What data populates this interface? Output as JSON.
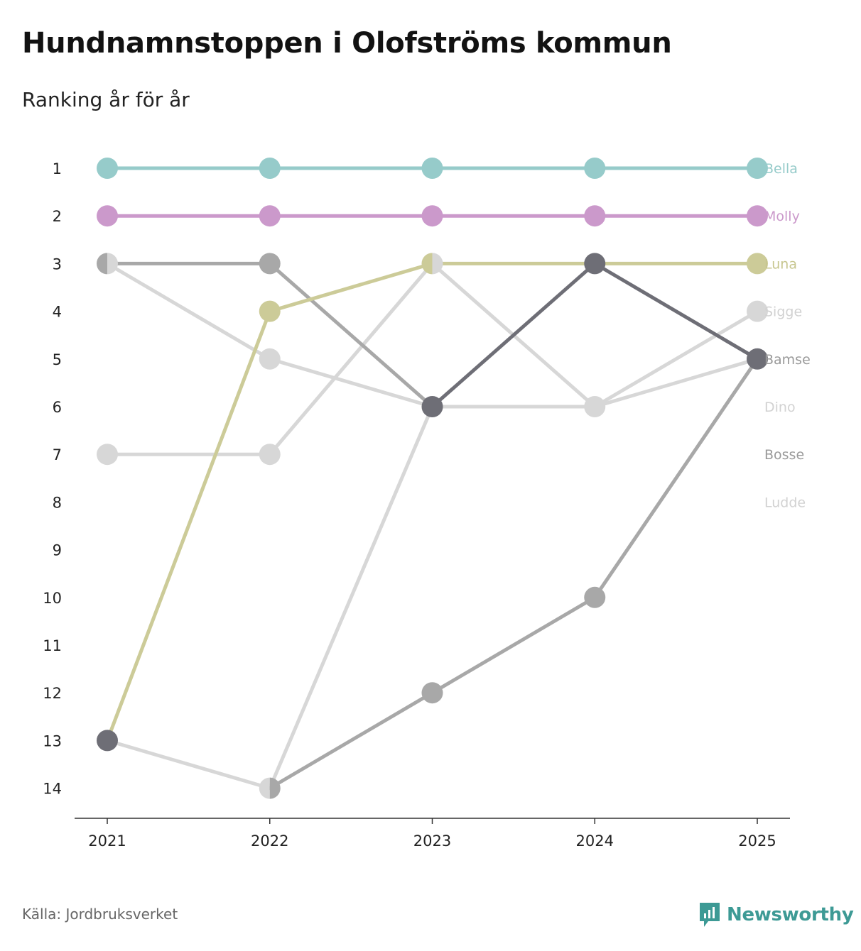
{
  "title": "Hundnamnstoppen i Olofströms kommun",
  "subtitle": "Ranking år för år",
  "source": "Källa: Jordbruksverket",
  "brand": "Newsworthy",
  "colors": {
    "brand": "#3d9a95"
  },
  "chart_data": {
    "type": "line",
    "title": "Hundnamnstoppen i Olofströms kommun",
    "subtitle": "Ranking år för år",
    "x": [
      "2021",
      "2022",
      "2023",
      "2024",
      "2025"
    ],
    "ylim": [
      1,
      14
    ],
    "y_reversed": true,
    "y_ticks": [
      1,
      2,
      3,
      4,
      5,
      6,
      7,
      8,
      9,
      10,
      11,
      12,
      13,
      14
    ],
    "series": [
      {
        "name": "Ludde",
        "values": [
          null,
          null,
          null,
          null,
          null
        ],
        "color": "#d7d7d7"
      },
      {
        "name": "Dino",
        "values": [
          13,
          14,
          null,
          null,
          null
        ],
        "color": "#d7d7d7"
      },
      {
        "name": "Sigge",
        "values": [
          3,
          5,
          6,
          6,
          4
        ],
        "color": "#d7d7d7"
      },
      {
        "name": "Sigge",
        "values": [
          7,
          7,
          3,
          6,
          5
        ],
        "color": "#d7d7d7"
      },
      {
        "name": "Dino",
        "values": [
          null,
          14,
          6,
          null,
          null
        ],
        "color": "#d7d7d7"
      },
      {
        "name": "Bosse",
        "values": [
          3,
          3,
          6,
          null,
          null
        ],
        "color": "#a8a8a8"
      },
      {
        "name": "Bosse",
        "values": [
          null,
          14,
          12,
          10,
          5
        ],
        "color": "#a8a8a8"
      },
      {
        "name": "Bamse",
        "values": [
          null,
          null,
          6,
          3,
          5
        ],
        "color": "#6e6e76"
      },
      {
        "name": "Luna",
        "values": [
          13,
          4,
          3,
          3,
          3
        ],
        "color": "#cccb98"
      },
      {
        "name": "Molly",
        "values": [
          2,
          2,
          2,
          2,
          2
        ],
        "color": "#cb99cb"
      },
      {
        "name": "Bella",
        "values": [
          1,
          1,
          1,
          1,
          1
        ],
        "color": "#96cbca"
      }
    ],
    "end_labels": [
      {
        "name": "Bella",
        "rank": 1,
        "color": "#96cbca"
      },
      {
        "name": "Molly",
        "rank": 2,
        "color": "#cb99cb"
      },
      {
        "name": "Luna",
        "rank": 3,
        "color": "#c7c68f"
      },
      {
        "name": "Sigge",
        "rank": 4,
        "color": "#d2d2d2"
      },
      {
        "name": "Bamse",
        "rank": 5,
        "color": "#9a9a9a"
      },
      {
        "name": "Dino",
        "rank": 6,
        "color": "#d2d2d2"
      },
      {
        "name": "Bosse",
        "rank": 7,
        "color": "#9a9a9a"
      },
      {
        "name": "Ludde",
        "rank": 8,
        "color": "#d2d2d2"
      }
    ],
    "dots": [
      {
        "year": "2021",
        "rank": 1,
        "color": "#96cbca"
      },
      {
        "year": "2022",
        "rank": 1,
        "color": "#96cbca"
      },
      {
        "year": "2023",
        "rank": 1,
        "color": "#96cbca"
      },
      {
        "year": "2024",
        "rank": 1,
        "color": "#96cbca"
      },
      {
        "year": "2025",
        "rank": 1,
        "color": "#96cbca"
      },
      {
        "year": "2021",
        "rank": 2,
        "color": "#cb99cb"
      },
      {
        "year": "2022",
        "rank": 2,
        "color": "#cb99cb"
      },
      {
        "year": "2023",
        "rank": 2,
        "color": "#cb99cb"
      },
      {
        "year": "2024",
        "rank": 2,
        "color": "#cb99cb"
      },
      {
        "year": "2025",
        "rank": 2,
        "color": "#cb99cb"
      },
      {
        "year": "2021",
        "rank": 3,
        "color": "#a8a8a8",
        "color2": "#d7d7d7"
      },
      {
        "year": "2022",
        "rank": 3,
        "color": "#a8a8a8"
      },
      {
        "year": "2023",
        "rank": 3,
        "color": "#cccb98",
        "color2": "#d7d7d7"
      },
      {
        "year": "2024",
        "rank": 3,
        "color": "#6e6e76"
      },
      {
        "year": "2025",
        "rank": 3,
        "color": "#cccb98"
      },
      {
        "year": "2022",
        "rank": 4,
        "color": "#cccb98"
      },
      {
        "year": "2025",
        "rank": 4,
        "color": "#d7d7d7"
      },
      {
        "year": "2022",
        "rank": 5,
        "color": "#d7d7d7"
      },
      {
        "year": "2025",
        "rank": 5,
        "color": "#6e6e76"
      },
      {
        "year": "2023",
        "rank": 6,
        "color": "#6e6e76"
      },
      {
        "year": "2024",
        "rank": 6,
        "color": "#d7d7d7"
      },
      {
        "year": "2021",
        "rank": 7,
        "color": "#d7d7d7"
      },
      {
        "year": "2022",
        "rank": 7,
        "color": "#d7d7d7"
      },
      {
        "year": "2024",
        "rank": 10,
        "color": "#a8a8a8"
      },
      {
        "year": "2023",
        "rank": 12,
        "color": "#a8a8a8"
      },
      {
        "year": "2021",
        "rank": 13,
        "color": "#6e6e76"
      },
      {
        "year": "2022",
        "rank": 14,
        "color": "#d7d7d7",
        "color2": "#a8a8a8"
      }
    ]
  }
}
